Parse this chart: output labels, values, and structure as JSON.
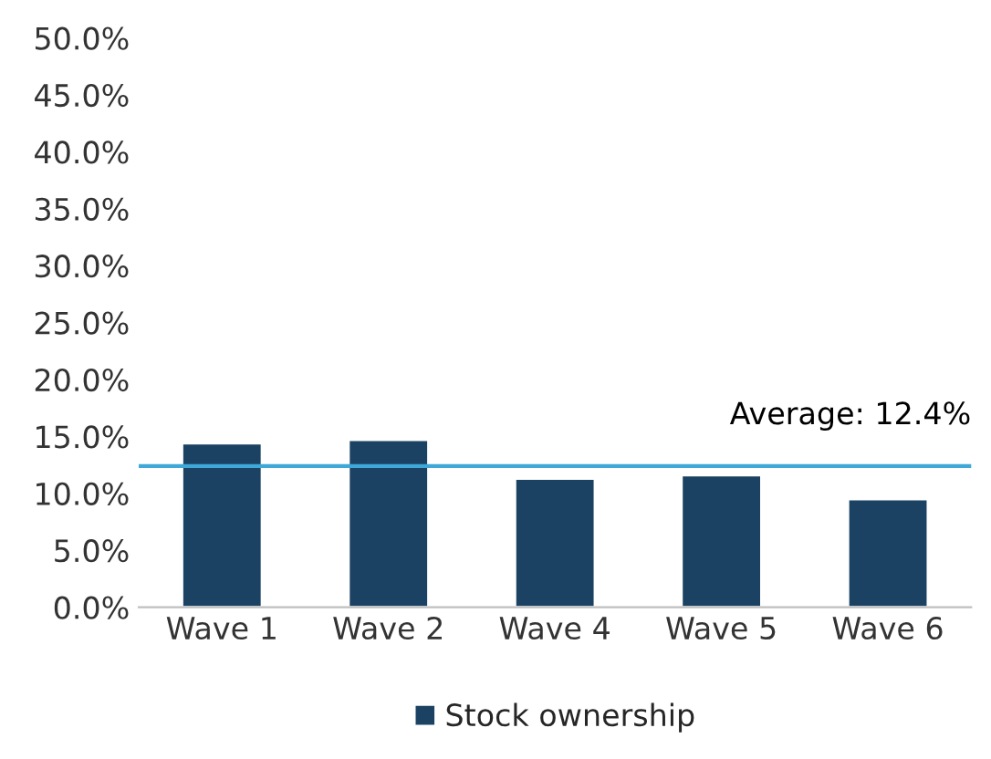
{
  "chart_data": {
    "type": "bar",
    "categories": [
      "Wave 1",
      "Wave 2",
      "Wave 4",
      "Wave 5",
      "Wave 6"
    ],
    "series": [
      {
        "name": "Stock ownership",
        "color": "#1b4262",
        "values": [
          14.4,
          14.7,
          11.3,
          11.6,
          9.5
        ]
      }
    ],
    "ylim": [
      0,
      50
    ],
    "yticks": [
      {
        "value": 0,
        "label": "0.0%"
      },
      {
        "value": 5,
        "label": "5.0%"
      },
      {
        "value": 10,
        "label": "10.0%"
      },
      {
        "value": 15,
        "label": "15.0%"
      },
      {
        "value": 20,
        "label": "20.0%"
      },
      {
        "value": 25,
        "label": "25.0%"
      },
      {
        "value": 30,
        "label": "30.0%"
      },
      {
        "value": 35,
        "label": "35.0%"
      },
      {
        "value": 40,
        "label": "40.0%"
      },
      {
        "value": 45,
        "label": "45.0%"
      },
      {
        "value": 50,
        "label": "50.0%"
      }
    ],
    "ref_lines": [
      {
        "axis": "y",
        "value": 12.4,
        "label": "Average: 12.4%",
        "color": "#3ea8d8"
      }
    ],
    "grid": false,
    "legend": "bottom"
  }
}
